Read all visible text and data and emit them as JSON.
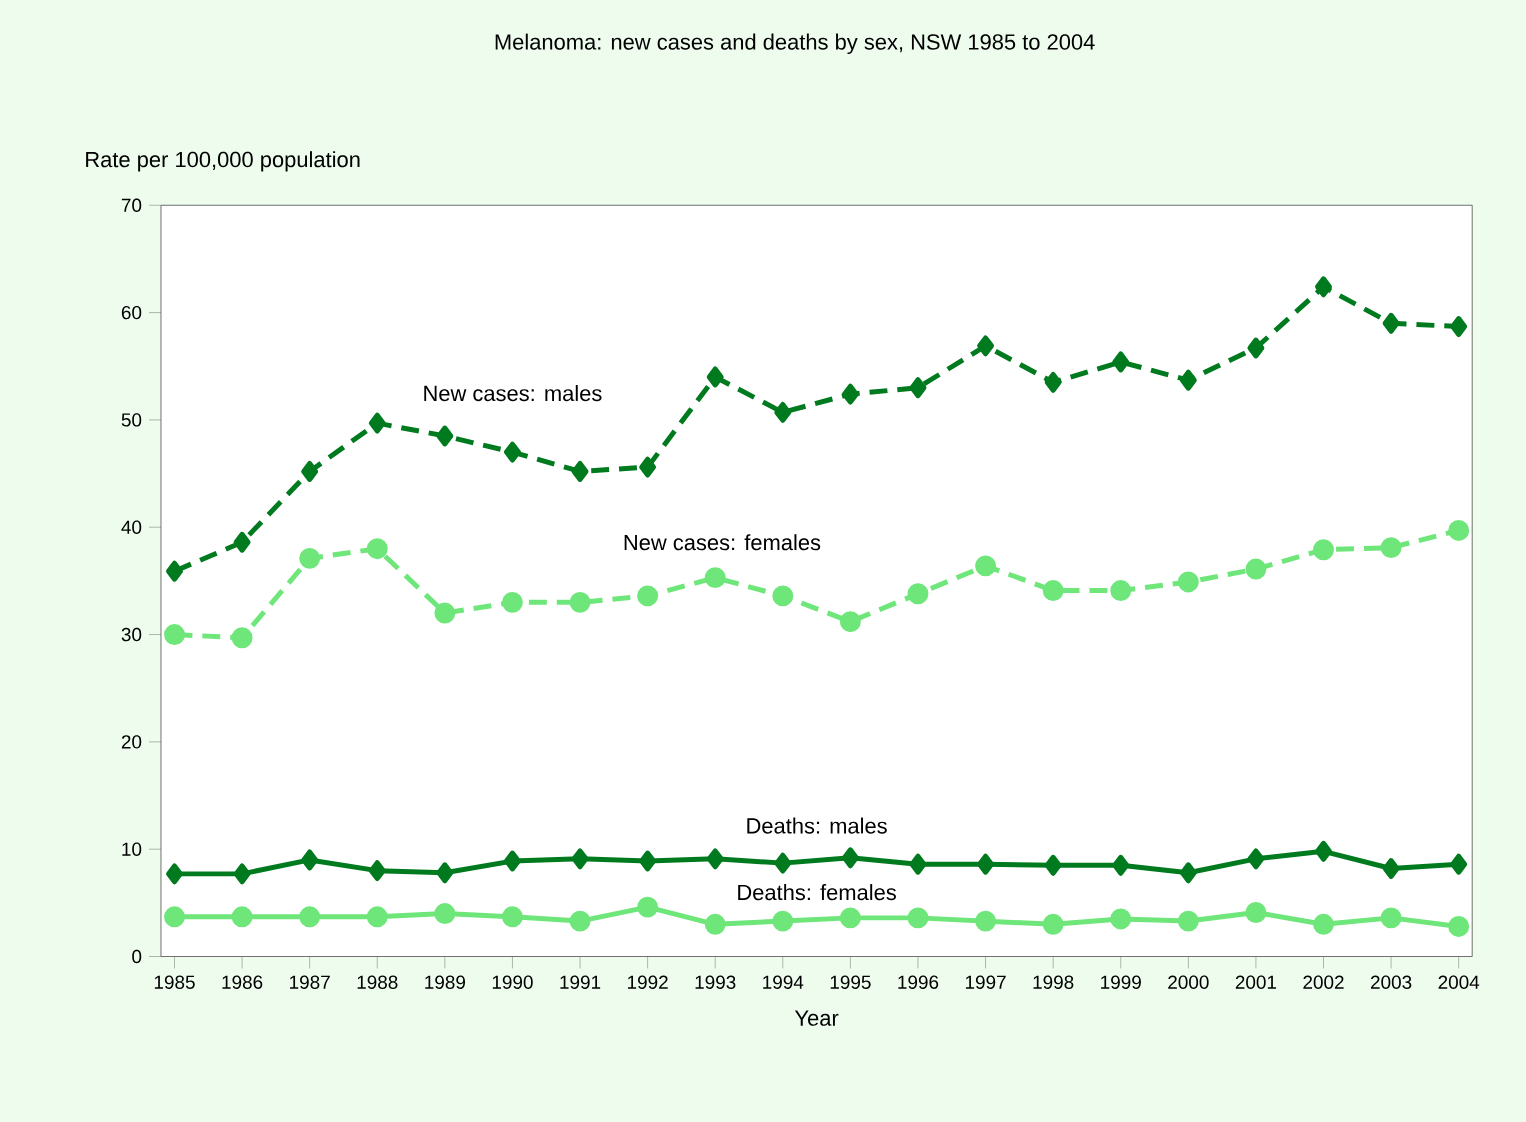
{
  "chart_data": {
    "type": "line",
    "title": "Melanoma: new cases and deaths by sex, NSW 1985 to 2004",
    "xlabel": "Year",
    "ylabel": "Rate per 100,000 population",
    "categories": [
      "1985",
      "1986",
      "1987",
      "1988",
      "1989",
      "1990",
      "1991",
      "1992",
      "1993",
      "1994",
      "1995",
      "1996",
      "1997",
      "1998",
      "1999",
      "2000",
      "2001",
      "2002",
      "2003",
      "2004"
    ],
    "ylim": [
      0,
      70
    ],
    "yticks": [
      0,
      10,
      20,
      30,
      40,
      50,
      60,
      70
    ],
    "grid": false,
    "legend": false,
    "series": [
      {
        "name": "New cases: males",
        "color": "#007a1e",
        "line_style": "dashed",
        "marker": "diamond",
        "values": [
          35.9,
          38.6,
          45.2,
          49.7,
          48.5,
          47,
          45.2,
          45.6,
          54,
          50.7,
          52.4,
          53,
          56.9,
          53.5,
          55.4,
          53.7,
          56.7,
          62.4,
          59,
          58.7
        ]
      },
      {
        "name": "New cases: females",
        "color": "#6ee67a",
        "line_style": "dashed",
        "marker": "circle",
        "values": [
          30,
          29.7,
          37.1,
          38,
          32,
          33,
          33,
          33.6,
          35.3,
          33.6,
          31.2,
          33.8,
          36.4,
          34.1,
          34.1,
          34.9,
          36.1,
          37.9,
          38.1,
          39.7
        ]
      },
      {
        "name": "Deaths: males",
        "color": "#007a1e",
        "line_style": "solid",
        "marker": "diamond",
        "values": [
          7.7,
          7.7,
          9,
          8,
          7.8,
          8.9,
          9.1,
          8.9,
          9.1,
          8.7,
          9.2,
          8.6,
          8.6,
          8.5,
          8.5,
          7.8,
          9.1,
          9.8,
          8.2,
          8.6
        ]
      },
      {
        "name": "Deaths: females",
        "color": "#6ee67a",
        "line_style": "solid",
        "marker": "circle",
        "values": [
          3.7,
          3.7,
          3.7,
          3.7,
          4,
          3.7,
          3.3,
          4.6,
          3,
          3.3,
          3.6,
          3.6,
          3.3,
          3,
          3.5,
          3.3,
          4.1,
          3,
          3.6,
          2.8
        ]
      }
    ]
  }
}
